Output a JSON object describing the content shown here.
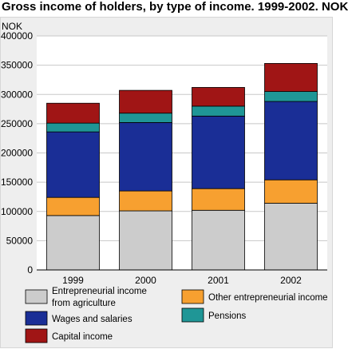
{
  "title": "Gross income of holders, by type of income. 1999-2002. NOK",
  "chart_data": {
    "type": "bar",
    "stacked": true,
    "title": "Gross income of holders, by type of income. 1999-2002. NOK",
    "ylabel": "NOK",
    "xlabel": "",
    "categories": [
      "1999",
      "2000",
      "2001",
      "2002"
    ],
    "ylim": [
      0,
      400000
    ],
    "yticks": [
      0,
      50000,
      100000,
      150000,
      200000,
      250000,
      300000,
      350000,
      400000
    ],
    "ytick_labels": [
      "0",
      "50000",
      "100000",
      "150000",
      "200000",
      "250000",
      "300000",
      "350000",
      "400000"
    ],
    "grid": true,
    "legend_position": "bottom",
    "series": [
      {
        "name": "Entrepreneurial income from agriculture",
        "color": "#cccccc",
        "values": [
          93000,
          101000,
          102000,
          114000
        ]
      },
      {
        "name": "Other entrepreneurial income",
        "color": "#f7a030",
        "values": [
          31000,
          34000,
          37000,
          40000
        ]
      },
      {
        "name": "Wages and salaries",
        "color": "#1a2e96",
        "values": [
          112000,
          117000,
          124000,
          134000
        ]
      },
      {
        "name": "Pensions",
        "color": "#1f9696",
        "values": [
          15000,
          16000,
          17000,
          17000
        ]
      },
      {
        "name": "Capital income",
        "color": "#a01515",
        "values": [
          34000,
          39000,
          32000,
          48000
        ]
      }
    ],
    "legend": {
      "items": [
        {
          "lines": [
            "Entrepreneurial income",
            "from agriculture"
          ],
          "color": "#cccccc"
        },
        {
          "lines": [
            "Other entrepreneurial income"
          ],
          "color": "#f7a030"
        },
        {
          "lines": [
            "Wages and salaries"
          ],
          "color": "#1a2e96"
        },
        {
          "lines": [
            "Pensions"
          ],
          "color": "#1f9696"
        },
        {
          "lines": [
            "Capital income"
          ],
          "color": "#a01515"
        }
      ]
    }
  }
}
